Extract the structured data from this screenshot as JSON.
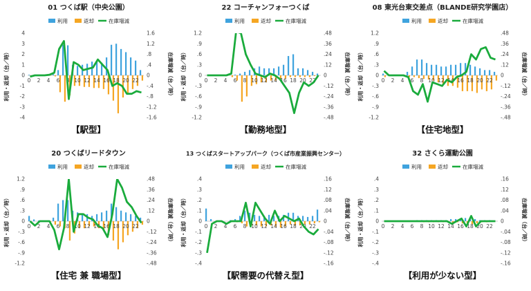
{
  "legend": {
    "use": "利用",
    "return": "返却",
    "delta": "在庫増減"
  },
  "axis": {
    "left": "利用・返却（台／時）",
    "right": "在庫増減（台／時）"
  },
  "colors": {
    "use": "#3fa3de",
    "return": "#f5a623",
    "delta": "#1aab3c",
    "zero": "#bbbbbb"
  },
  "chart_data": [
    {
      "type": "bar+line",
      "title": "01 つくば駅（中央公園）",
      "station_type": "【駅型】",
      "left_ylim": [
        -4,
        4
      ],
      "left_ticks": [
        -4,
        -3,
        -2,
        -1,
        0,
        1,
        2,
        3,
        4
      ],
      "right_ylim": [
        -1.6,
        1.6
      ],
      "right_ticks": [
        -1.6,
        -1.2,
        -0.8,
        -0.4,
        0,
        0.4,
        0.8,
        1.2,
        1.6
      ],
      "x_tick_labels": [
        0,
        2,
        4,
        6,
        8,
        10,
        12,
        14,
        16,
        18,
        20,
        22
      ],
      "hours": [
        0,
        1,
        2,
        3,
        4,
        5,
        6,
        7,
        8,
        9,
        10,
        11,
        12,
        13,
        14,
        15,
        16,
        17,
        18,
        19,
        20,
        21,
        22,
        23
      ],
      "use": [
        0.05,
        0.02,
        0.01,
        0.01,
        0.02,
        0.1,
        0.5,
        2.9,
        2.85,
        1.0,
        0.9,
        1.0,
        1.1,
        1.3,
        1.3,
        1.2,
        1.7,
        2.9,
        3.0,
        2.5,
        2.2,
        1.7,
        1.4,
        0.5
      ],
      "return": [
        -0.1,
        -0.05,
        -0.02,
        -0.01,
        -0.02,
        -0.1,
        -1.6,
        -2.5,
        -1.9,
        -1.0,
        -1.0,
        -1.1,
        -1.1,
        -1.2,
        -1.2,
        -1.3,
        -1.8,
        -2.4,
        -3.6,
        -2.1,
        -1.8,
        -1.3,
        -1.0,
        -0.5
      ],
      "delta": [
        -0.05,
        0.0,
        0.0,
        0.0,
        0.02,
        0.1,
        1.0,
        1.3,
        -0.9,
        0.5,
        0.4,
        0.2,
        0.25,
        0.3,
        0.6,
        0.4,
        0.2,
        -0.4,
        -0.3,
        -0.4,
        -0.7,
        -0.7,
        -0.6,
        -0.65
      ]
    },
    {
      "type": "bar+line",
      "title": "22 コーチャンフォーつくば",
      "station_type": "【勤務地型】",
      "left_ylim": [
        -1.2,
        1.2
      ],
      "left_ticks": [
        -1.2,
        -0.9,
        -0.6,
        -0.3,
        0,
        0.3,
        0.6,
        0.9,
        1.2
      ],
      "right_ylim": [
        -0.48,
        0.48
      ],
      "right_ticks": [
        -0.48,
        -0.36,
        -0.24,
        -0.12,
        0,
        0.12,
        0.24,
        0.36,
        0.48
      ],
      "x_tick_labels": [
        0,
        2,
        4,
        6,
        8,
        10,
        12,
        14,
        16,
        18,
        20,
        22
      ],
      "hours": [
        0,
        1,
        2,
        3,
        4,
        5,
        6,
        7,
        8,
        9,
        10,
        11,
        12,
        13,
        14,
        15,
        16,
        17,
        18,
        19,
        20,
        21,
        22,
        23
      ],
      "use": [
        0,
        0,
        0,
        0,
        0,
        0,
        0.02,
        0.05,
        0.1,
        0.15,
        0.2,
        0.25,
        0.2,
        0.2,
        0.2,
        0.25,
        0.3,
        0.55,
        0.6,
        0.2,
        0.2,
        0.15,
        0.1,
        0.05
      ],
      "return": [
        0,
        0,
        0,
        0,
        0,
        -0.05,
        -0.15,
        -0.75,
        -0.6,
        -0.3,
        -0.25,
        -0.2,
        -0.2,
        -0.15,
        -0.15,
        -0.1,
        -0.1,
        -0.05,
        -0.05,
        -0.05,
        -0.05,
        -0.05,
        -0.02,
        0
      ],
      "delta": [
        0,
        0,
        0,
        0,
        0,
        0.02,
        0.5,
        0.48,
        0.24,
        0.12,
        0.02,
        0.0,
        -0.02,
        0.02,
        0.0,
        -0.04,
        -0.12,
        -0.2,
        -0.43,
        -0.2,
        -0.08,
        -0.12,
        -0.08,
        0.0
      ]
    },
    {
      "type": "bar+line",
      "title": "08 東光台東交差点（BLANDE研究学園店）",
      "station_type": "【住宅地型】",
      "left_ylim": [
        -1.2,
        1.2
      ],
      "left_ticks": [
        -1.2,
        -0.9,
        -0.6,
        -0.3,
        0,
        0.3,
        0.6,
        0.9,
        1.2
      ],
      "right_ylim": [
        -0.48,
        0.48
      ],
      "right_ticks": [
        -0.48,
        -0.36,
        -0.24,
        -0.12,
        0,
        0.12,
        0.24,
        0.36,
        0.48
      ],
      "x_tick_labels": [
        0,
        2,
        4,
        6,
        8,
        10,
        12,
        14,
        16,
        18,
        20,
        22
      ],
      "hours": [
        0,
        1,
        2,
        3,
        4,
        5,
        6,
        7,
        8,
        9,
        10,
        11,
        12,
        13,
        14,
        15,
        16,
        17,
        18,
        19,
        20,
        21,
        22,
        23
      ],
      "use": [
        0.05,
        0.02,
        0,
        0,
        0.02,
        0.1,
        0.25,
        0.45,
        0.45,
        0.35,
        0.3,
        0.3,
        0.25,
        0.25,
        0.3,
        0.3,
        0.35,
        0.35,
        0.3,
        0.25,
        0.2,
        0.15,
        0.15,
        0.1
      ],
      "return": [
        -0.05,
        -0.02,
        0,
        0,
        -0.02,
        -0.05,
        -0.05,
        -0.08,
        -0.1,
        -0.12,
        -0.15,
        -0.2,
        -0.25,
        -0.3,
        -0.3,
        -0.35,
        -0.45,
        -0.45,
        -0.45,
        -0.5,
        -0.4,
        -0.45,
        -0.4,
        -0.15
      ],
      "delta": [
        0.05,
        0.0,
        0.0,
        0.0,
        0.0,
        -0.02,
        -0.18,
        -0.22,
        -0.1,
        -0.3,
        -0.08,
        -0.1,
        -0.12,
        -0.05,
        -0.08,
        -0.02,
        0.0,
        0.04,
        0.24,
        0.18,
        0.3,
        0.32,
        0.2,
        0.18
      ]
    },
    {
      "type": "bar+line",
      "title": "20 つくばリードタウン",
      "station_type": "【住宅 兼 職場型】",
      "left_ylim": [
        -1.2,
        1.2
      ],
      "left_ticks": [
        -1.2,
        -0.9,
        -0.6,
        -0.3,
        0,
        0.3,
        0.6,
        0.9,
        1.2
      ],
      "right_ylim": [
        -0.48,
        0.48
      ],
      "right_ticks": [
        -0.48,
        -0.36,
        -0.24,
        -0.12,
        0,
        0.12,
        0.24,
        0.36,
        0.48
      ],
      "x_tick_labels": [
        0,
        2,
        4,
        6,
        8,
        10,
        12,
        14,
        16,
        18,
        20,
        22
      ],
      "hours": [
        0,
        1,
        2,
        3,
        4,
        5,
        6,
        7,
        8,
        9,
        10,
        11,
        12,
        13,
        14,
        15,
        16,
        17,
        18,
        19,
        20,
        21,
        22,
        23
      ],
      "use": [
        0.15,
        0.05,
        0.02,
        0,
        0.02,
        0.1,
        0.5,
        0.6,
        0.6,
        0.3,
        0.25,
        0.2,
        0.2,
        0.15,
        0.2,
        0.25,
        0.3,
        0.5,
        0.4,
        0.3,
        0.25,
        0.2,
        0.15,
        0.1
      ],
      "return": [
        0,
        0,
        0,
        0,
        -0.02,
        -0.1,
        -0.15,
        -0.2,
        -0.55,
        -0.35,
        -0.2,
        -0.2,
        -0.15,
        -0.15,
        -0.2,
        -0.25,
        -0.4,
        -0.55,
        -0.8,
        -0.6,
        -0.4,
        -0.3,
        -0.2,
        -0.1
      ],
      "delta": [
        0.0,
        -0.05,
        0.0,
        0.0,
        0.0,
        -0.1,
        -0.32,
        -0.08,
        0.48,
        -0.12,
        0.08,
        0.08,
        0.04,
        0.02,
        -0.05,
        -0.08,
        -0.18,
        0.08,
        0.48,
        0.38,
        0.22,
        0.16,
        0.06,
        -0.02
      ]
    },
    {
      "type": "bar+line",
      "title": "13 つくばスタートアップパーク（つくば市産業振興センター）",
      "station_type": "【駅需要の代替え型】",
      "left_ylim": [
        -0.4,
        0.4
      ],
      "left_ticks": [
        -0.4,
        -0.3,
        -0.2,
        -0.1,
        0,
        0.1,
        0.2,
        0.3,
        0.4
      ],
      "right_ylim": [
        -0.16,
        0.16
      ],
      "right_ticks": [
        -0.16,
        -0.12,
        -0.08,
        -0.04,
        0,
        0.04,
        0.08,
        0.12,
        0.16
      ],
      "x_tick_labels": [
        0,
        2,
        4,
        6,
        8,
        10,
        12,
        14,
        16,
        18,
        20,
        22
      ],
      "hours": [
        0,
        1,
        2,
        3,
        4,
        5,
        6,
        7,
        8,
        9,
        10,
        11,
        12,
        13,
        14,
        15,
        16,
        17,
        18,
        19,
        20,
        21,
        22,
        23
      ],
      "use": [
        0.12,
        0.02,
        0,
        0,
        0,
        0.01,
        0.02,
        0.05,
        0.1,
        0.08,
        0.06,
        0.05,
        0.05,
        0.06,
        0.05,
        0.05,
        0.06,
        0.08,
        0.08,
        0.05,
        0.05,
        0.04,
        0.05,
        0.11
      ],
      "return": [
        0,
        0,
        0,
        0,
        0,
        0,
        -0.01,
        -0.02,
        -0.05,
        -0.04,
        -0.04,
        -0.05,
        -0.05,
        -0.04,
        -0.05,
        -0.06,
        -0.05,
        -0.03,
        -0.04,
        -0.04,
        -0.03,
        -0.03,
        -0.02,
        -0.01
      ],
      "delta": [
        -0.12,
        -0.01,
        0.0,
        0.0,
        -0.01,
        0.0,
        0.0,
        0.0,
        0.07,
        -0.02,
        0.07,
        0.04,
        0.01,
        -0.01,
        0.04,
        0.0,
        0.02,
        0.01,
        0.0,
        0.01,
        -0.02,
        -0.04,
        -0.05,
        -0.03
      ]
    },
    {
      "type": "bar+line",
      "title": "32 さくら運動公園",
      "station_type": "【利用が少ない型】",
      "left_ylim": [
        -0.4,
        0.4
      ],
      "left_ticks": [
        -0.4,
        -0.3,
        -0.2,
        -0.1,
        0,
        0.1,
        0.2,
        0.3,
        0.4
      ],
      "right_ylim": [
        -0.16,
        0.16
      ],
      "right_ticks": [
        -0.16,
        -0.12,
        -0.08,
        -0.04,
        0,
        0.04,
        0.08,
        0.12,
        0.16
      ],
      "x_tick_labels": [
        0,
        2,
        4,
        6,
        8,
        10,
        12,
        14,
        16,
        18,
        20,
        22
      ],
      "hours": [
        0,
        1,
        2,
        3,
        4,
        5,
        6,
        7,
        8,
        9,
        10,
        11,
        12,
        13,
        14,
        15,
        16,
        17,
        18,
        19,
        20,
        21,
        22,
        23
      ],
      "use": [
        0,
        0,
        0,
        0,
        0,
        0,
        0,
        0.01,
        0.01,
        0.01,
        0.01,
        0.01,
        0.01,
        0.01,
        0.02,
        0.02,
        0.01,
        0.03,
        0.02,
        0.02,
        0.01,
        0.01,
        0.01,
        0
      ],
      "return": [
        0,
        0,
        0,
        0,
        0,
        0,
        0,
        0,
        -0.01,
        -0.01,
        -0.01,
        -0.01,
        -0.01,
        -0.01,
        -0.02,
        -0.01,
        -0.02,
        -0.02,
        -0.03,
        -0.02,
        -0.01,
        -0.01,
        0,
        0
      ],
      "delta": [
        0.0,
        0.0,
        0.0,
        0.0,
        0.0,
        0.0,
        0.0,
        0.0,
        0.0,
        0.0,
        0.0,
        0.0,
        0.0,
        0.0,
        -0.01,
        0.0,
        0.01,
        -0.02,
        0.02,
        -0.02,
        0.0,
        0.0,
        0.0,
        0.0
      ]
    }
  ]
}
